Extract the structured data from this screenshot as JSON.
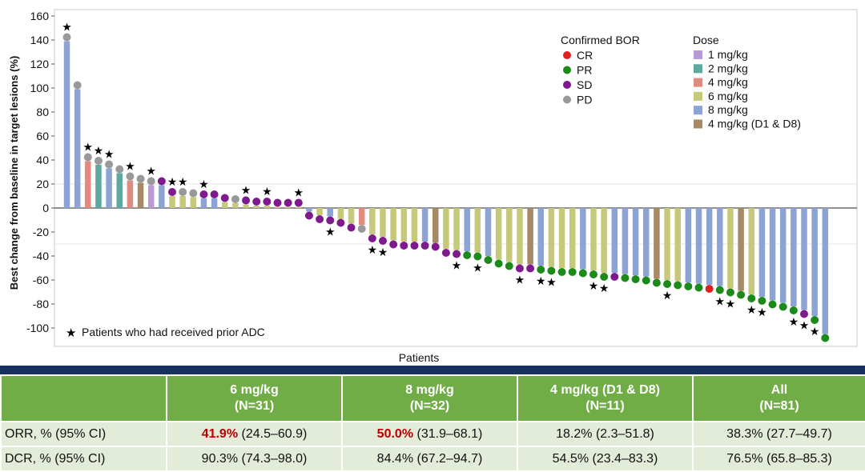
{
  "chart_data": {
    "type": "bar",
    "xlabel": "Patients",
    "ylabel": "Best change from baseline in target lesions (%)",
    "ylim": [
      -110,
      165
    ],
    "yticks": [
      160,
      140,
      120,
      100,
      80,
      60,
      40,
      20,
      0,
      -20,
      -40,
      -60,
      -80,
      -100
    ],
    "ref_lines": [
      20,
      -30
    ],
    "dose_colors": {
      "1 mg/kg": "#b99ad6",
      "2 mg/kg": "#5fa8a0",
      "4 mg/kg": "#e08a80",
      "6 mg/kg": "#c6c97a",
      "8 mg/kg": "#8da3d4",
      "4 mg/kg (D1 & D8)": "#a68a68"
    },
    "bor_colors": {
      "CR": "#e02020",
      "PR": "#1b8a1b",
      "SD": "#7e1a8e",
      "PD": "#999999"
    },
    "legend_bor_title": "Confirmed BOR",
    "legend_bor": [
      "CR",
      "PR",
      "SD",
      "PD"
    ],
    "legend_dose_title": "Dose",
    "legend_dose": [
      "1 mg/kg",
      "2 mg/kg",
      "4 mg/kg",
      "6 mg/kg",
      "8 mg/kg",
      "4 mg/kg (D1 & D8)"
    ],
    "star_note": "Patients who had received prior ADC",
    "patients": [
      {
        "value": 139,
        "dose": "8 mg/kg",
        "bor": "PD",
        "prior_adc": true
      },
      {
        "value": 99,
        "dose": "8 mg/kg",
        "bor": "PD",
        "prior_adc": false
      },
      {
        "value": 39,
        "dose": "4 mg/kg",
        "bor": "PD",
        "prior_adc": true
      },
      {
        "value": 36,
        "dose": "2 mg/kg",
        "bor": "PD",
        "prior_adc": true
      },
      {
        "value": 33,
        "dose": "8 mg/kg",
        "bor": "PD",
        "prior_adc": true
      },
      {
        "value": 29,
        "dose": "2 mg/kg",
        "bor": "PD",
        "prior_adc": false
      },
      {
        "value": 23,
        "dose": "4 mg/kg",
        "bor": "PD",
        "prior_adc": true
      },
      {
        "value": 21,
        "dose": "4 mg/kg (D1 & D8)",
        "bor": "PD",
        "prior_adc": false
      },
      {
        "value": 19,
        "dose": "1 mg/kg",
        "bor": "PD",
        "prior_adc": true
      },
      {
        "value": 19,
        "dose": "8 mg/kg",
        "bor": "SD",
        "prior_adc": false
      },
      {
        "value": 10,
        "dose": "6 mg/kg",
        "bor": "SD",
        "prior_adc": true
      },
      {
        "value": 10,
        "dose": "6 mg/kg",
        "bor": "PD",
        "prior_adc": true
      },
      {
        "value": 9,
        "dose": "6 mg/kg",
        "bor": "PD",
        "prior_adc": false
      },
      {
        "value": 8,
        "dose": "8 mg/kg",
        "bor": "SD",
        "prior_adc": true
      },
      {
        "value": 8,
        "dose": "8 mg/kg",
        "bor": "SD",
        "prior_adc": false
      },
      {
        "value": 5,
        "dose": "6 mg/kg",
        "bor": "SD",
        "prior_adc": false
      },
      {
        "value": 4,
        "dose": "6 mg/kg",
        "bor": "PD",
        "prior_adc": false
      },
      {
        "value": 3,
        "dose": "6 mg/kg",
        "bor": "SD",
        "prior_adc": true
      },
      {
        "value": 2,
        "dose": "6 mg/kg",
        "bor": "SD",
        "prior_adc": false
      },
      {
        "value": 2,
        "dose": "6 mg/kg",
        "bor": "SD",
        "prior_adc": true
      },
      {
        "value": 1,
        "dose": "6 mg/kg",
        "bor": "SD",
        "prior_adc": false
      },
      {
        "value": 1,
        "dose": "6 mg/kg",
        "bor": "SD",
        "prior_adc": false
      },
      {
        "value": 1,
        "dose": "6 mg/kg",
        "bor": "SD",
        "prior_adc": true
      },
      {
        "value": -3,
        "dose": "8 mg/kg",
        "bor": "SD",
        "prior_adc": false
      },
      {
        "value": -6,
        "dose": "6 mg/kg",
        "bor": "SD",
        "prior_adc": false
      },
      {
        "value": -7,
        "dose": "8 mg/kg",
        "bor": "SD",
        "prior_adc": true
      },
      {
        "value": -9,
        "dose": "6 mg/kg",
        "bor": "SD",
        "prior_adc": false
      },
      {
        "value": -13,
        "dose": "6 mg/kg",
        "bor": "SD",
        "prior_adc": false
      },
      {
        "value": -14,
        "dose": "4 mg/kg",
        "bor": "PD",
        "prior_adc": false
      },
      {
        "value": -22,
        "dose": "6 mg/kg",
        "bor": "SD",
        "prior_adc": true
      },
      {
        "value": -24,
        "dose": "6 mg/kg",
        "bor": "SD",
        "prior_adc": true
      },
      {
        "value": -27,
        "dose": "6 mg/kg",
        "bor": "SD",
        "prior_adc": false
      },
      {
        "value": -28,
        "dose": "6 mg/kg",
        "bor": "SD",
        "prior_adc": false
      },
      {
        "value": -28,
        "dose": "6 mg/kg",
        "bor": "SD",
        "prior_adc": false
      },
      {
        "value": -28,
        "dose": "8 mg/kg",
        "bor": "SD",
        "prior_adc": false
      },
      {
        "value": -29,
        "dose": "4 mg/kg (D1 & D8)",
        "bor": "SD",
        "prior_adc": false
      },
      {
        "value": -34,
        "dose": "6 mg/kg",
        "bor": "SD",
        "prior_adc": false
      },
      {
        "value": -35,
        "dose": "6 mg/kg",
        "bor": "SD",
        "prior_adc": true
      },
      {
        "value": -36,
        "dose": "8 mg/kg",
        "bor": "PR",
        "prior_adc": false
      },
      {
        "value": -37,
        "dose": "6 mg/kg",
        "bor": "PR",
        "prior_adc": true
      },
      {
        "value": -40,
        "dose": "8 mg/kg",
        "bor": "PR",
        "prior_adc": false
      },
      {
        "value": -43,
        "dose": "6 mg/kg",
        "bor": "PR",
        "prior_adc": false
      },
      {
        "value": -45,
        "dose": "6 mg/kg",
        "bor": "PR",
        "prior_adc": false
      },
      {
        "value": -47,
        "dose": "6 mg/kg",
        "bor": "SD",
        "prior_adc": true
      },
      {
        "value": -47,
        "dose": "4 mg/kg (D1 & D8)",
        "bor": "SD",
        "prior_adc": false
      },
      {
        "value": -48,
        "dose": "8 mg/kg",
        "bor": "PR",
        "prior_adc": true
      },
      {
        "value": -49,
        "dose": "6 mg/kg",
        "bor": "PR",
        "prior_adc": true
      },
      {
        "value": -50,
        "dose": "6 mg/kg",
        "bor": "PR",
        "prior_adc": false
      },
      {
        "value": -50,
        "dose": "6 mg/kg",
        "bor": "PR",
        "prior_adc": false
      },
      {
        "value": -51,
        "dose": "8 mg/kg",
        "bor": "PR",
        "prior_adc": false
      },
      {
        "value": -52,
        "dose": "6 mg/kg",
        "bor": "PR",
        "prior_adc": true
      },
      {
        "value": -54,
        "dose": "6 mg/kg",
        "bor": "PR",
        "prior_adc": true
      },
      {
        "value": -54,
        "dose": "8 mg/kg",
        "bor": "SD",
        "prior_adc": false
      },
      {
        "value": -55,
        "dose": "8 mg/kg",
        "bor": "PR",
        "prior_adc": false
      },
      {
        "value": -56,
        "dose": "8 mg/kg",
        "bor": "PR",
        "prior_adc": false
      },
      {
        "value": -57,
        "dose": "8 mg/kg",
        "bor": "PR",
        "prior_adc": false
      },
      {
        "value": -59,
        "dose": "4 mg/kg (D1 & D8)",
        "bor": "PR",
        "prior_adc": false
      },
      {
        "value": -60,
        "dose": "6 mg/kg",
        "bor": "PR",
        "prior_adc": true
      },
      {
        "value": -61,
        "dose": "6 mg/kg",
        "bor": "PR",
        "prior_adc": false
      },
      {
        "value": -62,
        "dose": "8 mg/kg",
        "bor": "PR",
        "prior_adc": false
      },
      {
        "value": -63,
        "dose": "8 mg/kg",
        "bor": "PR",
        "prior_adc": false
      },
      {
        "value": -64,
        "dose": "8 mg/kg",
        "bor": "CR",
        "prior_adc": false
      },
      {
        "value": -65,
        "dose": "8 mg/kg",
        "bor": "PR",
        "prior_adc": true
      },
      {
        "value": -67,
        "dose": "6 mg/kg",
        "bor": "PR",
        "prior_adc": true
      },
      {
        "value": -69,
        "dose": "4 mg/kg (D1 & D8)",
        "bor": "PR",
        "prior_adc": false
      },
      {
        "value": -72,
        "dose": "6 mg/kg",
        "bor": "PR",
        "prior_adc": true
      },
      {
        "value": -74,
        "dose": "8 mg/kg",
        "bor": "PR",
        "prior_adc": true
      },
      {
        "value": -77,
        "dose": "8 mg/kg",
        "bor": "PR",
        "prior_adc": false
      },
      {
        "value": -79,
        "dose": "8 mg/kg",
        "bor": "PR",
        "prior_adc": false
      },
      {
        "value": -82,
        "dose": "8 mg/kg",
        "bor": "PR",
        "prior_adc": true
      },
      {
        "value": -85,
        "dose": "8 mg/kg",
        "bor": "SD",
        "prior_adc": true
      },
      {
        "value": -90,
        "dose": "8 mg/kg",
        "bor": "PR",
        "prior_adc": true
      },
      {
        "value": -105,
        "dose": "8 mg/kg",
        "bor": "PR",
        "prior_adc": false
      }
    ]
  },
  "table": {
    "headers": [
      {
        "dose": "6 mg/kg",
        "n": "(N=31)"
      },
      {
        "dose": "8 mg/kg",
        "n": "(N=32)"
      },
      {
        "dose": "4 mg/kg (D1 & D8)",
        "n": "(N=11)"
      },
      {
        "dose": "All",
        "n": "(N=81)"
      }
    ],
    "rows": [
      {
        "label": "ORR, % (95% CI)",
        "cells": [
          {
            "highlight": "41.9%",
            "rest": " (24.5–60.9)"
          },
          {
            "highlight": "50.0%",
            "rest": " (31.9–68.1)"
          },
          {
            "highlight": "",
            "rest": "18.2% (2.3–51.8)"
          },
          {
            "highlight": "",
            "rest": "38.3% (27.7–49.7)"
          }
        ]
      },
      {
        "label": "DCR, % (95% CI)",
        "cells": [
          {
            "highlight": "",
            "rest": "90.3% (74.3–98.0)"
          },
          {
            "highlight": "",
            "rest": "84.4% (67.2–94.7)"
          },
          {
            "highlight": "",
            "rest": "54.5% (23.4–83.3)"
          },
          {
            "highlight": "",
            "rest": "76.5% (65.8–85.3)"
          }
        ]
      }
    ]
  }
}
